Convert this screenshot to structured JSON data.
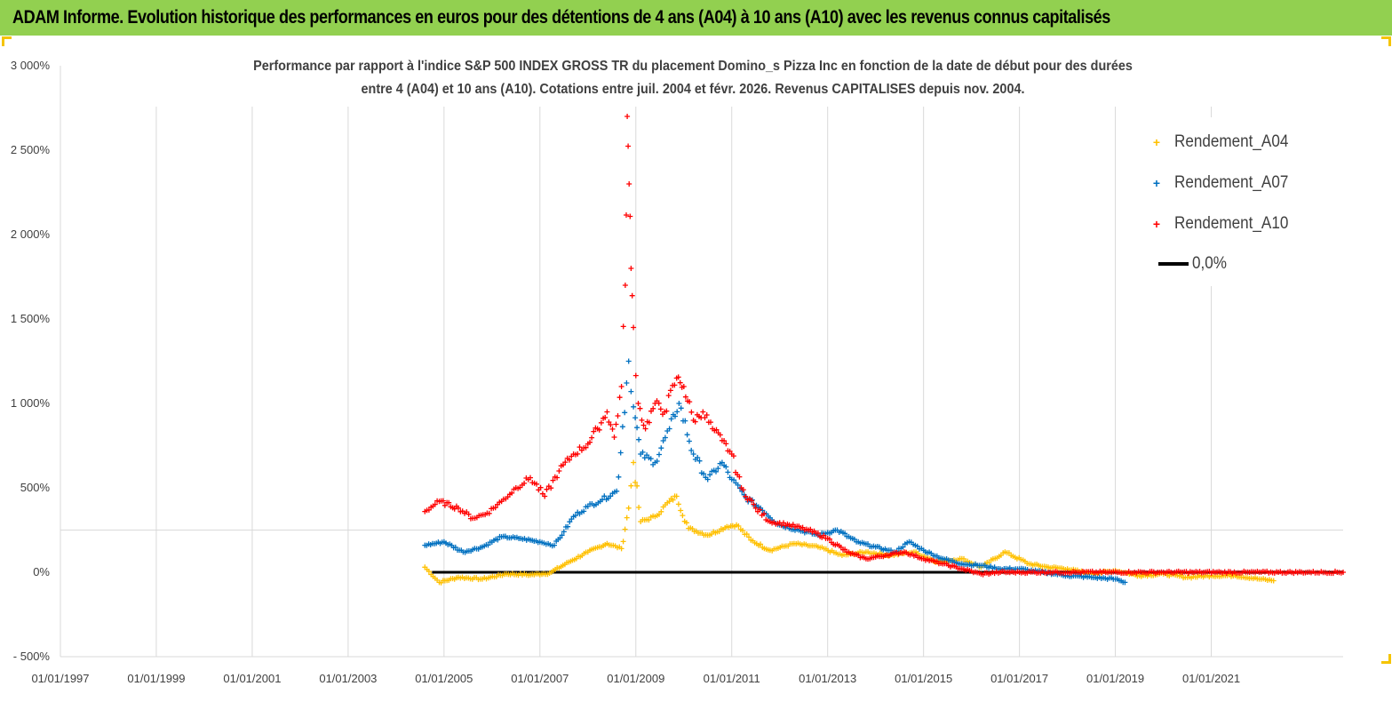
{
  "banner": {
    "title": "ADAM Informe. Evolution historique des performances en euros pour des détentions de 4 ans (A04) à 10 ans (A10) avec les revenus connus capitalisés"
  },
  "colors": {
    "banner_bg": "#92d050",
    "a04": "#ffc000",
    "a07": "#0070c0",
    "a10": "#ff0000",
    "zero": "#000000",
    "grid": "#d9d9d9"
  },
  "chart_data": {
    "type": "scatter",
    "title_line1": "Performance par rapport à l'indice S&P 500 INDEX GROSS TR  du placement Domino_s Pizza Inc en fonction de la date de début pour des durées",
    "title_line2": "entre 4 (A04) et 10 ans (A10). Cotations entre juil. 2004 et févr. 2026. Revenus CAPITALISES depuis nov. 2004.",
    "x_unit": "year",
    "xlim": [
      1997,
      2023.75
    ],
    "ylim": [
      -500,
      3000
    ],
    "y_ticks": [
      -500,
      0,
      500,
      1000,
      1500,
      2000,
      2500,
      3000
    ],
    "y_tick_labels": [
      "- 500%",
      "0%",
      "500%",
      "1 000%",
      "1 500%",
      "2 000%",
      "2 500%",
      "3 000%"
    ],
    "x_ticks": [
      1997,
      1999,
      2001,
      2003,
      2005,
      2007,
      2009,
      2011,
      2013,
      2015,
      2017,
      2019,
      2021
    ],
    "x_tick_labels": [
      "01/01/1997",
      "01/01/1999",
      "01/01/2001",
      "01/01/2003",
      "01/01/2005",
      "01/01/2007",
      "01/01/2009",
      "01/01/2011",
      "01/01/2013",
      "01/01/2015",
      "01/01/2017",
      "01/01/2019",
      "01/01/2021"
    ],
    "series": [
      {
        "name": "Rendement_A04",
        "color": "#ffc000",
        "marker": "+",
        "x": [
          2004.6,
          2004.9,
          2005.3,
          2005.8,
          2006.3,
          2006.8,
          2007.2,
          2007.6,
          2008.0,
          2008.4,
          2008.7,
          2008.85,
          2008.95,
          2009.1,
          2009.4,
          2009.7,
          2009.85,
          2010.1,
          2010.5,
          2010.9,
          2011.1,
          2011.4,
          2011.8,
          2012.3,
          2012.8,
          2013.3,
          2013.8,
          2014.3,
          2014.8,
          2015.3,
          2015.8,
          2016.2,
          2016.7,
          2017.2,
          2017.6,
          2018.0,
          2018.5,
          2019.0,
          2019.5,
          2020.0,
          2020.5,
          2021.0,
          2021.5,
          2022.0,
          2022.3
        ],
        "y": [
          30,
          -60,
          -30,
          -40,
          -10,
          -15,
          -5,
          60,
          120,
          170,
          140,
          380,
          650,
          300,
          330,
          420,
          450,
          260,
          220,
          270,
          280,
          190,
          130,
          170,
          150,
          100,
          120,
          100,
          120,
          60,
          80,
          30,
          120,
          50,
          30,
          20,
          -10,
          10,
          -20,
          -10,
          -30,
          -20,
          -20,
          -40,
          -50
        ]
      },
      {
        "name": "Rendement_A07",
        "color": "#0070c0",
        "marker": "+",
        "x": [
          2004.6,
          2005.0,
          2005.4,
          2005.8,
          2006.2,
          2006.6,
          2007.0,
          2007.3,
          2007.5,
          2007.7,
          2008.0,
          2008.3,
          2008.6,
          2008.85,
          2008.95,
          2009.1,
          2009.4,
          2009.7,
          2009.9,
          2010.2,
          2010.5,
          2010.8,
          2011.0,
          2011.3,
          2011.6,
          2012.0,
          2012.4,
          2012.8,
          2013.2,
          2013.6,
          2014.0,
          2014.4,
          2014.7,
          2015.0,
          2015.4,
          2015.8,
          2016.2,
          2016.6,
          2017.0,
          2017.5,
          2018.0,
          2018.5,
          2019.0,
          2019.2
        ],
        "y": [
          160,
          180,
          120,
          150,
          210,
          200,
          180,
          160,
          240,
          330,
          390,
          430,
          480,
          1250,
          980,
          700,
          650,
          850,
          1000,
          700,
          550,
          650,
          550,
          440,
          380,
          280,
          250,
          220,
          250,
          180,
          150,
          120,
          180,
          130,
          80,
          50,
          40,
          20,
          20,
          0,
          -20,
          -30,
          -40,
          -60
        ]
      },
      {
        "name": "Rendement_A10",
        "color": "#ff0000",
        "marker": "+",
        "x": [
          2004.6,
          2004.9,
          2005.3,
          2005.6,
          2005.9,
          2006.2,
          2006.5,
          2006.8,
          2007.1,
          2007.4,
          2007.7,
          2008.0,
          2008.2,
          2008.4,
          2008.55,
          2008.7,
          2008.78,
          2008.82,
          2008.86,
          2008.9,
          2008.95,
          2009.05,
          2009.2,
          2009.4,
          2009.6,
          2009.85,
          2010.0,
          2010.2,
          2010.4,
          2010.6,
          2010.8,
          2011.0,
          2011.2,
          2011.5,
          2011.8,
          2012.2,
          2012.6,
          2013.0,
          2013.4,
          2013.8,
          2014.2,
          2014.6,
          2015.0,
          2015.4,
          2015.8,
          2016.2,
          2016.6,
          2017.0,
          2017.6,
          2018.2,
          2018.8,
          2019.4,
          2020.0,
          2020.6,
          2021.2,
          2021.8,
          2022.4,
          2023.0,
          2023.75
        ],
        "y": [
          360,
          420,
          380,
          320,
          350,
          420,
          500,
          560,
          450,
          600,
          700,
          760,
          850,
          950,
          800,
          1100,
          1700,
          2700,
          2300,
          1800,
          1450,
          1000,
          850,
          1000,
          950,
          1150,
          1100,
          900,
          950,
          850,
          780,
          700,
          500,
          380,
          300,
          280,
          250,
          200,
          120,
          80,
          100,
          120,
          80,
          50,
          20,
          -10,
          0,
          0,
          0,
          0,
          0,
          0,
          0,
          0,
          0,
          0,
          0,
          0,
          0
        ]
      }
    ],
    "reference_line": {
      "name": "0,0%",
      "y": 0,
      "x_range": [
        2004.75,
        2023.75
      ]
    },
    "legend": {
      "position": "top-right",
      "labels": [
        "Rendement_A04",
        "Rendement_A07",
        "Rendement_A10",
        "0,0%"
      ]
    }
  }
}
